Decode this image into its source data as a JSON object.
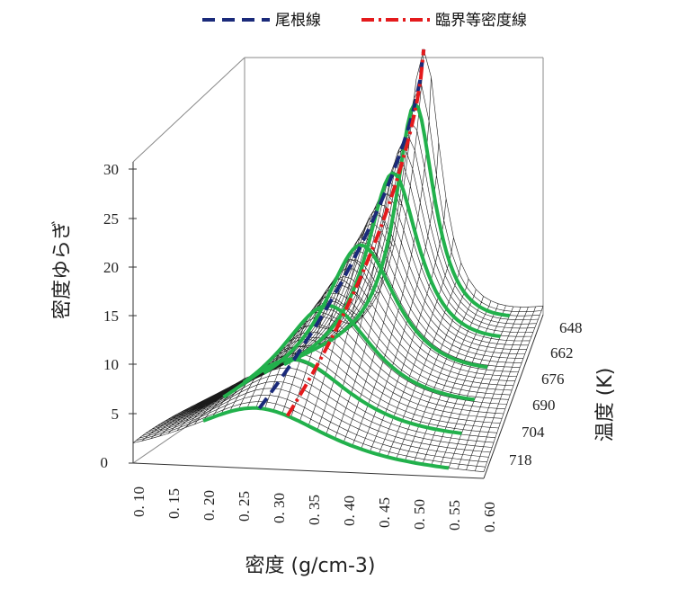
{
  "chart_data": {
    "type": "surface",
    "legend": [
      {
        "label": "尾根線",
        "color": "#1a2a7a",
        "dash": "dashed"
      },
      {
        "label": "臨界等密度線",
        "color": "#e41a1c",
        "dash": "dash-dot"
      }
    ],
    "axes": {
      "x": {
        "label": "密度 (g/cm-3)",
        "ticks": [
          "0. 10",
          "0. 15",
          "0. 20",
          "0. 25",
          "0. 30",
          "0. 35",
          "0. 40",
          "0. 45",
          "0. 50",
          "0. 55",
          "0. 60"
        ],
        "range": [
          0.1,
          0.6
        ]
      },
      "y": {
        "label": "温度 (K)",
        "ticks": [
          "648",
          "662",
          "676",
          "690",
          "704",
          "718"
        ],
        "range": [
          648,
          718
        ]
      },
      "z": {
        "label": "密度ゆらぎ",
        "ticks": [
          "0",
          "5",
          "10",
          "15",
          "20",
          "25",
          "30"
        ],
        "range": [
          0,
          30
        ]
      }
    },
    "ridge_line": {
      "x": [
        0.28,
        0.4
      ],
      "y": [
        718,
        648
      ],
      "color": "#1a2a7a"
    },
    "critical_isochore": {
      "x": [
        0.32,
        0.32
      ],
      "y": [
        718,
        648
      ],
      "color": "#e41a1c"
    },
    "contour_color": "#22b14c",
    "mesh_color": "#1a1a1a"
  }
}
